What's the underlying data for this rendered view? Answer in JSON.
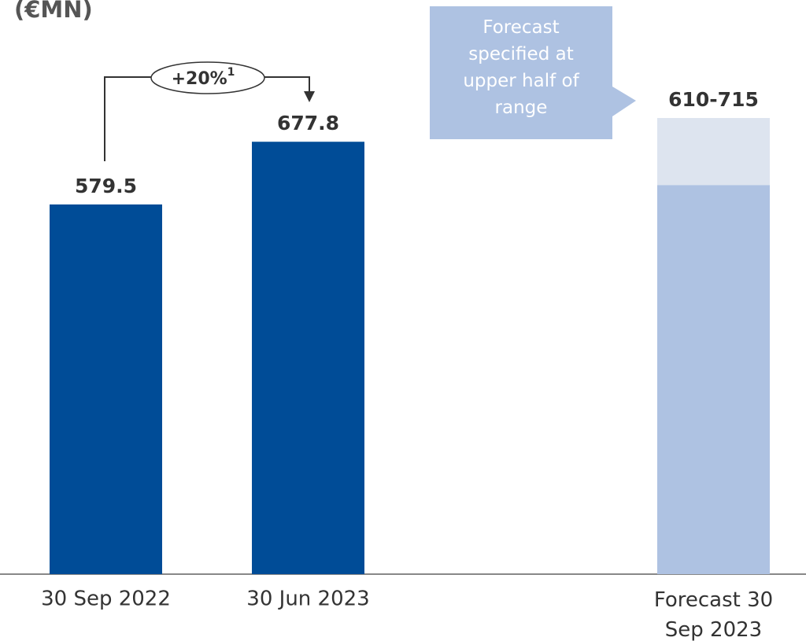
{
  "chart_data": {
    "type": "bar",
    "title": "(€MN)",
    "categories": [
      "30 Sep 2022",
      "30 Jun 2023",
      "Forecast 30 Sep 2023"
    ],
    "values": [
      579.5,
      677.8,
      null
    ],
    "value_labels": [
      "579.5",
      "677.8",
      null
    ],
    "color": "#004c97",
    "forecast": {
      "low": 610,
      "high": 715,
      "label": "610-715",
      "color": "#aec2e2",
      "range_color": "#dde4ef"
    },
    "annotation": {
      "text": "+20%",
      "footnote": "1"
    },
    "callout": "Forecast specified at upper half of range",
    "ylim": [
      0,
      900
    ]
  }
}
